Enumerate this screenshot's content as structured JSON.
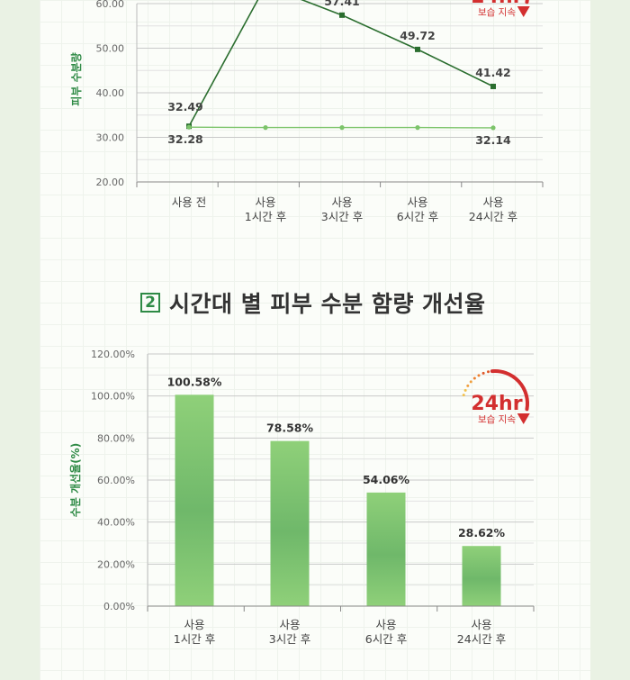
{
  "section2": {
    "number": "2",
    "title": "시간대 별 피부 수분 함량 개선율"
  },
  "badge": {
    "big": "24hr",
    "small": "보습 지속",
    "color": "#d32f2f"
  },
  "chart_data": [
    {
      "type": "line",
      "ylabel": "피부 수분량",
      "yticks": [
        "20.00",
        "30.00",
        "40.00",
        "50.00",
        "60.00"
      ],
      "ylim": [
        20,
        60
      ],
      "categories": [
        [
          "사용 전"
        ],
        [
          "사용",
          "1시간 후"
        ],
        [
          "사용",
          "3시간 후"
        ],
        [
          "사용",
          "6시간 후"
        ],
        [
          "사용",
          "24시간 후"
        ]
      ],
      "series": [
        {
          "values": [
            32.49,
            64.0,
            57.41,
            49.72,
            41.42
          ],
          "color": "#2b6e2f",
          "labels": [
            "32.49",
            "",
            "57.41",
            "49.72",
            "41.42"
          ]
        },
        {
          "values": [
            32.28,
            32.2,
            32.2,
            32.2,
            32.14
          ],
          "color": "#7cc46a",
          "labels": [
            "32.28",
            "",
            "",
            "",
            "32.14"
          ]
        }
      ]
    },
    {
      "type": "bar",
      "ylabel": "수분 개선율(%)",
      "yticks": [
        "0.00%",
        "20.00%",
        "40.00%",
        "60.00%",
        "80.00%",
        "100.00%",
        "120.00%"
      ],
      "ylim": [
        0,
        120
      ],
      "categories": [
        [
          "사용",
          "1시간 후"
        ],
        [
          "사용",
          "3시간 후"
        ],
        [
          "사용",
          "6시간 후"
        ],
        [
          "사용",
          "24시간 후"
        ]
      ],
      "values": [
        100.58,
        78.58,
        54.06,
        28.62
      ],
      "labels": [
        "100.58%",
        "78.58%",
        "54.06%",
        "28.62%"
      ]
    }
  ]
}
